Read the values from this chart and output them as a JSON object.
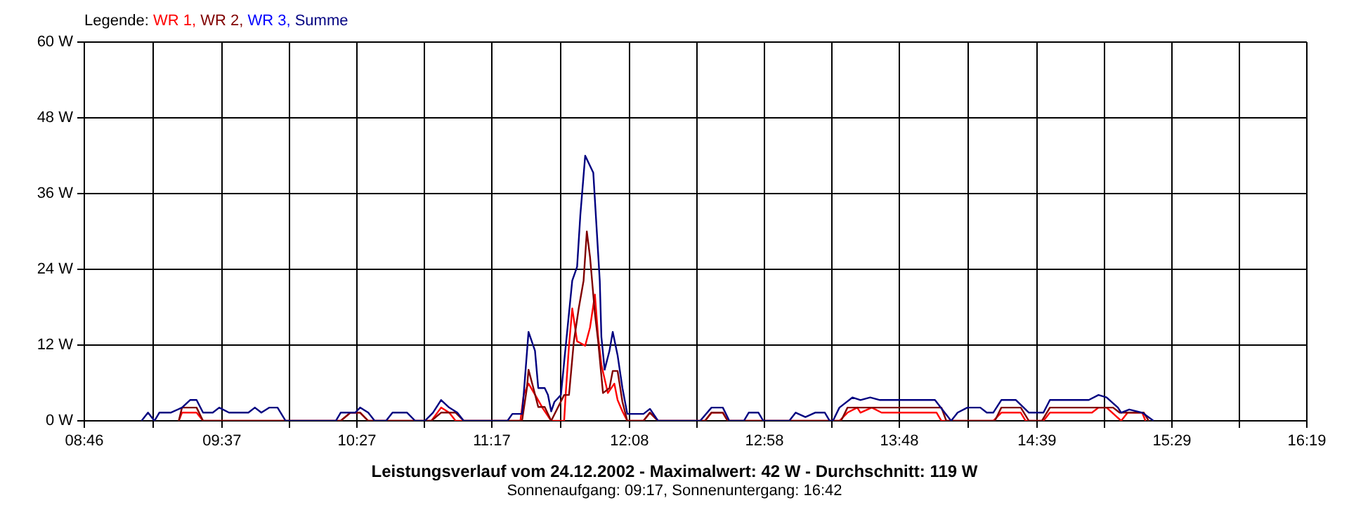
{
  "chart_data": {
    "type": "line",
    "title": "Leistungsverlauf vom 24.12.2002 - Maximalwert: 42 W - Durchschnitt: 119 W",
    "subtitle": "Sonnenaufgang: 09:17, Sonnenuntergang: 16:42",
    "legend_title": "Legende:",
    "legend": "top left",
    "grid": true,
    "marker": "none",
    "line_style": "solid",
    "xlim": [
      8.7667,
      16.3167
    ],
    "xticks": [
      {
        "value": 8.7667,
        "label": "08:46"
      },
      {
        "value": 9.1917,
        "label": null
      },
      {
        "value": 9.6167,
        "label": "09:37"
      },
      {
        "value": 10.0333,
        "label": null
      },
      {
        "value": 10.45,
        "label": "10:27"
      },
      {
        "value": 10.8667,
        "label": null
      },
      {
        "value": 11.2833,
        "label": "11:17"
      },
      {
        "value": 11.7083,
        "label": null
      },
      {
        "value": 12.1333,
        "label": "12:08"
      },
      {
        "value": 12.55,
        "label": null
      },
      {
        "value": 12.9667,
        "label": "12:58"
      },
      {
        "value": 13.3833,
        "label": null
      },
      {
        "value": 13.8,
        "label": "13:48"
      },
      {
        "value": 14.225,
        "label": null
      },
      {
        "value": 14.65,
        "label": "14:39"
      },
      {
        "value": 15.0667,
        "label": null
      },
      {
        "value": 15.4833,
        "label": "15:29"
      },
      {
        "value": 15.9,
        "label": null
      },
      {
        "value": 16.3167,
        "label": "16:19"
      }
    ],
    "ylim": [
      0,
      60
    ],
    "yticks": [
      {
        "value": 0,
        "label": "0 W"
      },
      {
        "value": 12,
        "label": "12 W"
      },
      {
        "value": 24,
        "label": "24 W"
      },
      {
        "value": 36,
        "label": "36 W"
      },
      {
        "value": 48,
        "label": "48 W"
      },
      {
        "value": 60,
        "label": "60 W"
      }
    ],
    "series": [
      {
        "name": "WR 1,",
        "color": "#ff0000",
        "x": [
          9.35,
          9.37,
          9.46,
          9.5,
          10.35,
          10.41,
          10.47,
          10.52,
          10.91,
          10.97,
          11.02,
          11.06,
          11.46,
          11.48,
          11.51,
          11.56,
          11.6,
          11.65,
          11.73,
          11.74,
          11.76,
          11.78,
          11.81,
          11.86,
          11.89,
          11.92,
          11.94,
          11.96,
          12.0,
          12.04,
          12.06,
          12.09,
          12.12,
          12.22,
          12.26,
          12.31,
          12.6,
          12.64,
          12.71,
          12.74,
          13.43,
          13.48,
          13.54,
          13.56,
          13.63,
          13.69,
          14.03,
          14.06,
          14.38,
          14.43,
          14.55,
          14.58,
          14.69,
          14.73,
          14.99,
          15.03,
          15.08,
          15.17,
          15.21,
          15.3,
          15.32
        ],
        "values": [
          0,
          1.3,
          1.3,
          0,
          0,
          1.3,
          1.3,
          0,
          0,
          2.1,
          1.3,
          0,
          0,
          4.1,
          5.9,
          3.7,
          1.9,
          0,
          0,
          4.4,
          11.9,
          17.8,
          12.6,
          11.9,
          14.8,
          20,
          13.3,
          8.9,
          4.4,
          5.9,
          3.3,
          1.5,
          0,
          0,
          1.3,
          0,
          0,
          1.3,
          1.3,
          0,
          0,
          1.3,
          2.1,
          1.3,
          2.1,
          1.3,
          1.3,
          0,
          0,
          1.3,
          1.3,
          0,
          0,
          1.3,
          1.3,
          2.1,
          2.1,
          0,
          1.3,
          1.3,
          0
        ]
      },
      {
        "name": "WR 2,",
        "color": "#800000",
        "x": [
          9.35,
          9.37,
          9.46,
          9.5,
          10.35,
          10.41,
          10.47,
          10.52,
          10.91,
          10.97,
          11.06,
          11.11,
          11.47,
          11.5,
          11.51,
          11.54,
          11.57,
          11.61,
          11.65,
          11.73,
          11.76,
          11.79,
          11.82,
          11.85,
          11.87,
          11.89,
          11.92,
          11.94,
          11.97,
          12.01,
          12.03,
          12.06,
          12.09,
          12.12,
          12.22,
          12.26,
          12.31,
          12.6,
          12.64,
          12.71,
          12.74,
          13.44,
          13.48,
          14.06,
          14.09,
          14.39,
          14.43,
          14.55,
          14.6,
          14.68,
          14.73,
          15.12,
          15.16,
          15.31,
          15.34
        ],
        "values": [
          0,
          2.1,
          2.1,
          0,
          0,
          1.3,
          1.3,
          0,
          0,
          1.3,
          1.3,
          0,
          0,
          5.2,
          8.1,
          5.2,
          2.2,
          2.2,
          0,
          4.1,
          4.1,
          12.6,
          17.8,
          22.2,
          30,
          25.9,
          17,
          12.6,
          4.4,
          5.2,
          7.9,
          7.9,
          3,
          0,
          0,
          1.3,
          0,
          0,
          1.3,
          1.3,
          0,
          0,
          2.1,
          2.1,
          0,
          0,
          2.1,
          2.1,
          0,
          0,
          2.1,
          2.1,
          1.3,
          1.3,
          0
        ]
      },
      {
        "name": "WR 3,",
        "color": "#0000ff"
      },
      {
        "name": "Summe",
        "color": "#000080",
        "x": [
          9.12,
          9.16,
          9.2,
          9.23,
          9.3,
          9.37,
          9.42,
          9.46,
          9.5,
          9.56,
          9.6,
          9.66,
          9.78,
          9.82,
          9.86,
          9.91,
          9.96,
          10.01,
          10.32,
          10.35,
          10.44,
          10.47,
          10.52,
          10.56,
          10.63,
          10.67,
          10.76,
          10.81,
          10.87,
          10.92,
          10.97,
          11.02,
          11.07,
          11.11,
          11.38,
          11.41,
          11.47,
          11.48,
          11.51,
          11.55,
          11.57,
          11.61,
          11.63,
          11.65,
          11.67,
          11.71,
          11.74,
          11.78,
          11.81,
          11.83,
          11.86,
          11.91,
          11.95,
          11.96,
          11.98,
          12.01,
          12.03,
          12.06,
          12.09,
          12.12,
          12.22,
          12.26,
          12.31,
          12.57,
          12.64,
          12.71,
          12.75,
          12.84,
          12.87,
          12.93,
          12.96,
          13.12,
          13.16,
          13.22,
          13.28,
          13.34,
          13.37,
          13.39,
          13.43,
          13.51,
          13.56,
          13.62,
          13.68,
          14.02,
          14.08,
          14.12,
          14.16,
          14.22,
          14.3,
          14.34,
          14.38,
          14.43,
          14.52,
          14.6,
          14.69,
          14.73,
          14.97,
          15.03,
          15.08,
          15.15,
          15.17,
          15.22,
          15.3,
          15.37
        ],
        "values": [
          0,
          1.3,
          0,
          1.3,
          1.3,
          2.1,
          3.3,
          3.3,
          1.3,
          1.3,
          2.1,
          1.3,
          1.3,
          2.1,
          1.3,
          2.1,
          2.1,
          0,
          0,
          1.3,
          1.3,
          2.1,
          1.3,
          0,
          0,
          1.3,
          1.3,
          0,
          0,
          1.3,
          3.3,
          2.1,
          1.3,
          0,
          0,
          1.1,
          1.1,
          4.1,
          14.1,
          11.1,
          5.2,
          5.2,
          4.1,
          1.5,
          3,
          4.1,
          11.9,
          22.2,
          24.4,
          32.6,
          42,
          39.3,
          22.2,
          13.3,
          8.1,
          11.1,
          14.1,
          10.4,
          5.2,
          1.1,
          1.1,
          1.9,
          0,
          0,
          2.1,
          2.1,
          0,
          0,
          1.3,
          1.3,
          0,
          0,
          1.3,
          0.6,
          1.3,
          1.3,
          0,
          0,
          2.1,
          3.7,
          3.3,
          3.7,
          3.3,
          3.3,
          1.3,
          0,
          1.3,
          2.1,
          2.1,
          1.3,
          1.3,
          3.3,
          3.3,
          1.3,
          1.3,
          3.3,
          3.3,
          4.1,
          3.7,
          2.1,
          1.3,
          1.8,
          1.3,
          0
        ]
      }
    ]
  }
}
